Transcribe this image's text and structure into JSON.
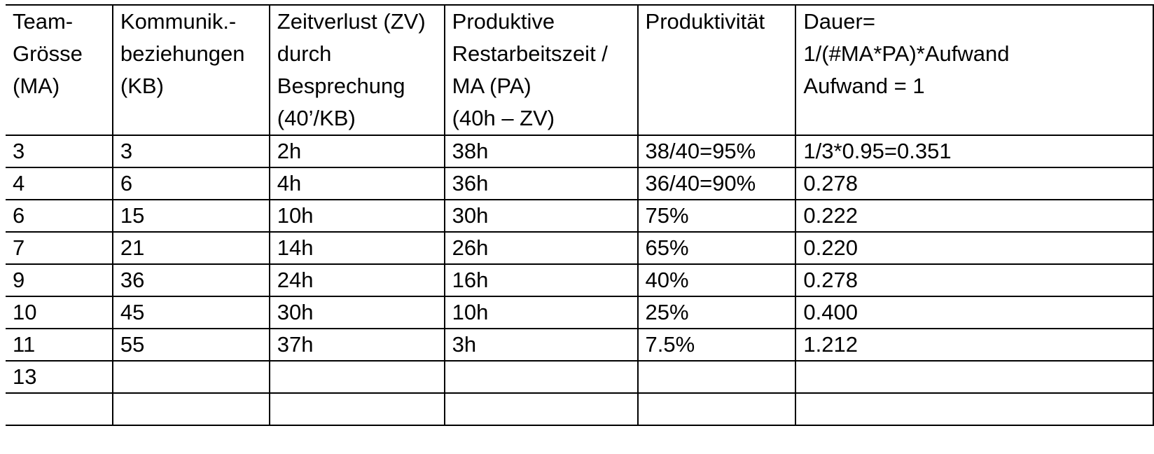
{
  "table": {
    "headers": [
      [
        "Team-",
        "Grösse",
        "(MA)"
      ],
      [
        "Kommunik.-",
        "beziehungen",
        "(KB)"
      ],
      [
        "Zeitverlust (ZV)",
        "durch",
        "Besprechung",
        "(40’/KB)"
      ],
      [
        "Produktive",
        "Restarbeitszeit /",
        "MA (PA)",
        "(40h – ZV)"
      ],
      [
        "Produktivität"
      ],
      [
        "Dauer=",
        "1/(#MA*PA)*Aufwand",
        "Aufwand = 1"
      ]
    ],
    "rows": [
      [
        "3",
        "3",
        "2h",
        "38h",
        "38/40=95%",
        "1/3*0.95=0.351"
      ],
      [
        "4",
        "6",
        "4h",
        "36h",
        "36/40=90%",
        "0.278"
      ],
      [
        "6",
        "15",
        "10h",
        "30h",
        "75%",
        "0.222"
      ],
      [
        "7",
        "21",
        "14h",
        "26h",
        "65%",
        "0.220"
      ],
      [
        "9",
        "36",
        "24h",
        "16h",
        "40%",
        "0.278"
      ],
      [
        "10",
        "45",
        "30h",
        "10h",
        "25%",
        "0.400"
      ],
      [
        "11",
        "55",
        "37h",
        "3h",
        "7.5%",
        "1.212"
      ],
      [
        "13",
        "",
        "",
        "",
        "",
        ""
      ],
      [
        "",
        "",
        "",
        "",
        "",
        ""
      ]
    ]
  }
}
